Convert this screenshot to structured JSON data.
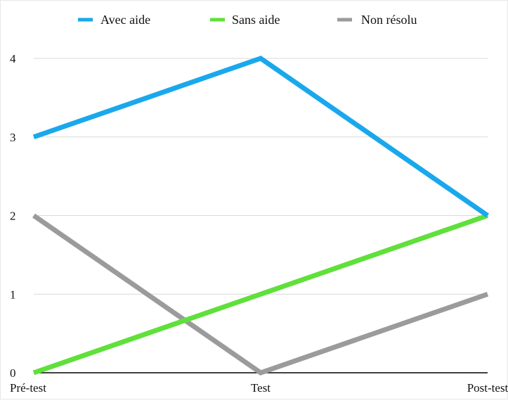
{
  "chart_data": {
    "type": "line",
    "title": "",
    "xlabel": "",
    "ylabel": "",
    "categories": [
      "Pré-test",
      "Test",
      "Post-test"
    ],
    "ylim": [
      0,
      4
    ],
    "yticks": [
      0,
      1,
      2,
      3,
      4
    ],
    "grid": true,
    "legend_position": "top",
    "series": [
      {
        "name": "Avec aide",
        "color": "#1aa8ec",
        "values": [
          3,
          4,
          2
        ]
      },
      {
        "name": "Sans aide",
        "color": "#5fe03a",
        "values": [
          0,
          1,
          2
        ]
      },
      {
        "name": "Non résolu",
        "color": "#9b9b9b",
        "values": [
          2,
          0,
          1
        ]
      }
    ]
  },
  "colors": {
    "grid": "#d9d9d9",
    "baseline": "#000000",
    "frame": "#e6e6e6"
  }
}
